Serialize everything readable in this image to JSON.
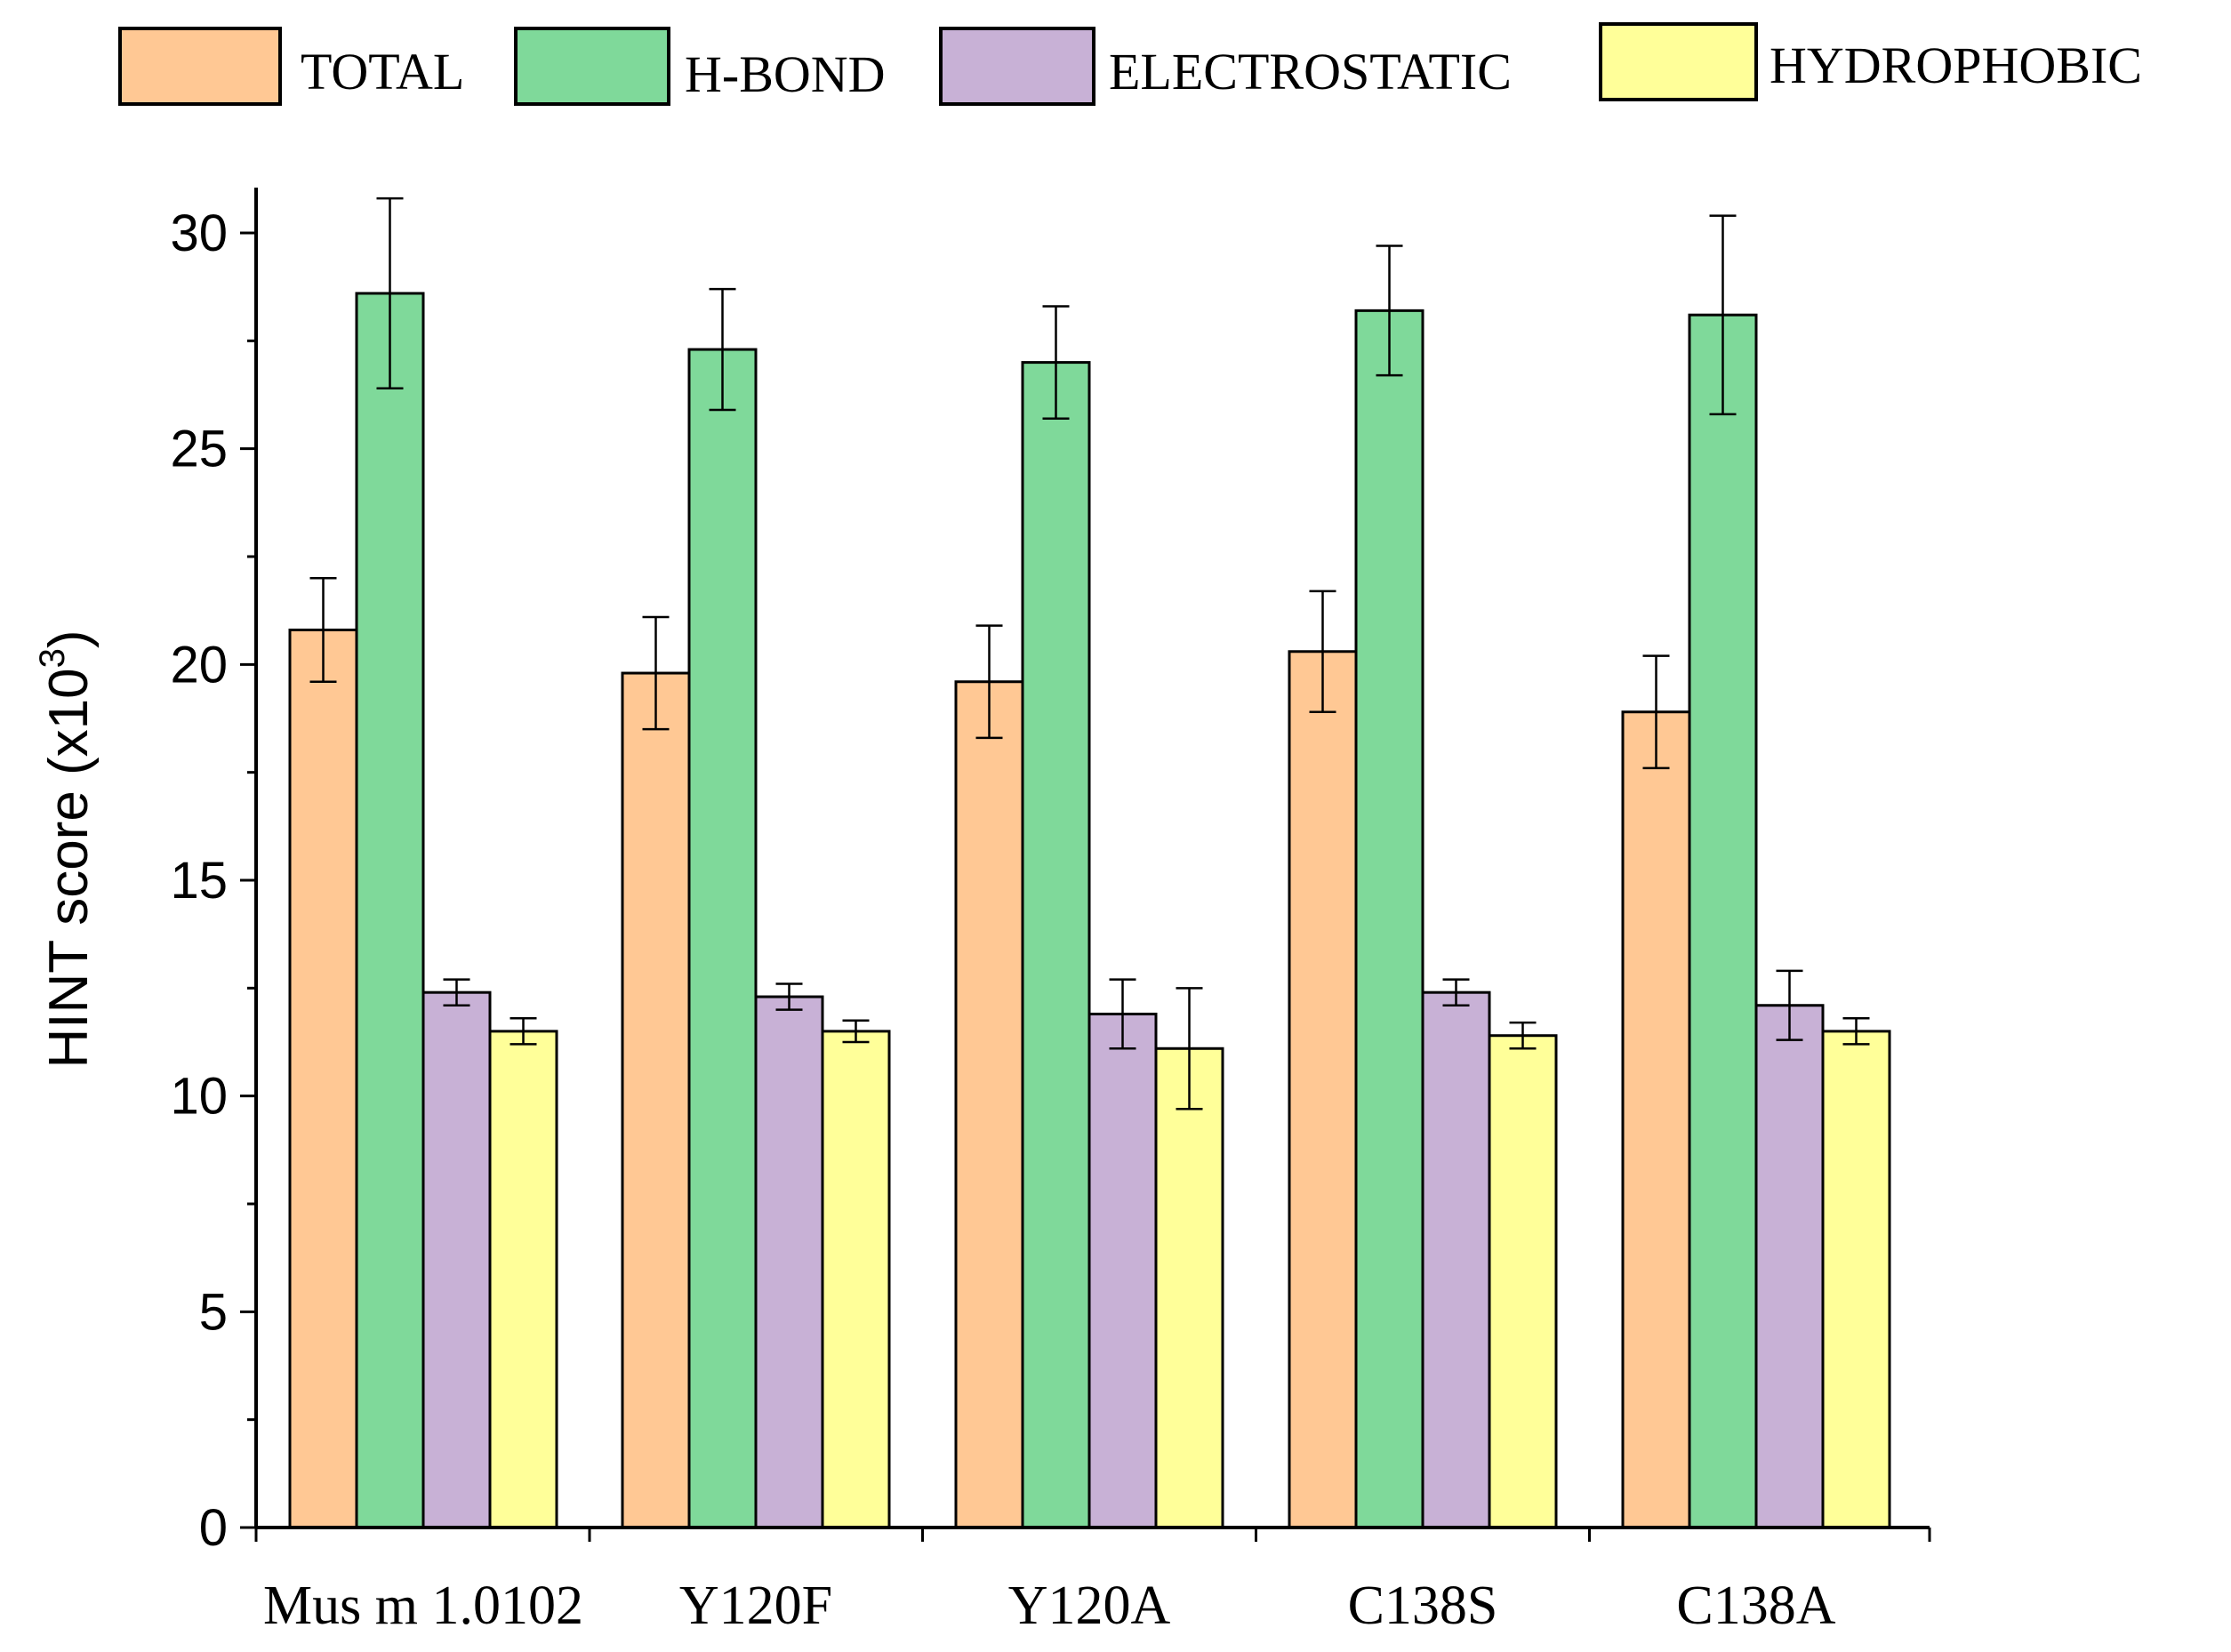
{
  "chart_data": {
    "type": "bar",
    "title": "",
    "xlabel": "",
    "ylabel": "HINT score (x10",
    "ylabel_superscript": "3",
    "ylabel_close": ")",
    "ylim": [
      0,
      31
    ],
    "yticks": [
      "0",
      "5",
      "10",
      "15",
      "20",
      "25",
      "30"
    ],
    "categories": [
      "Mus m 1.0102",
      "Y120F",
      "Y120A",
      "C138S",
      "C138A"
    ],
    "legend_position": "top",
    "series": [
      {
        "name": "TOTAL",
        "color": "#FFC894",
        "values": [
          20.8,
          19.8,
          19.6,
          20.3,
          18.9
        ],
        "errors": [
          1.2,
          1.3,
          1.3,
          1.4,
          1.3
        ]
      },
      {
        "name": "H-BOND",
        "color": "#7FD99A",
        "values": [
          28.6,
          27.3,
          27.0,
          28.2,
          28.1
        ],
        "errors": [
          2.2,
          1.4,
          1.3,
          1.5,
          2.3
        ]
      },
      {
        "name": "ELECTROSTATIC",
        "color": "#C8B1D6",
        "values": [
          12.4,
          12.3,
          11.9,
          12.4,
          12.1
        ],
        "errors": [
          0.3,
          0.3,
          0.8,
          0.3,
          0.8
        ]
      },
      {
        "name": "HYDROPHOBIC",
        "color": "#FFFF99",
        "values": [
          11.5,
          11.5,
          11.1,
          11.4,
          11.5
        ],
        "errors": [
          0.3,
          0.25,
          1.4,
          0.3,
          0.3
        ]
      }
    ]
  }
}
